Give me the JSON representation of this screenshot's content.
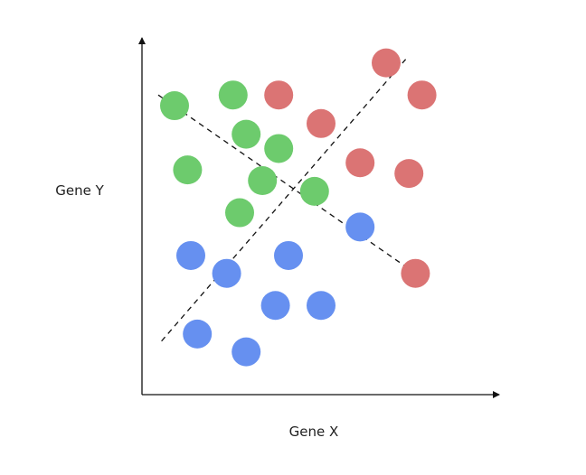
{
  "chart_data": {
    "type": "scatter",
    "xlabel": "Gene X",
    "ylabel": "Gene Y",
    "xlim": [
      0,
      100
    ],
    "ylim": [
      0,
      100
    ],
    "grid": false,
    "legend": "none",
    "colors": {
      "red": "#DB7474",
      "green": "#6DCB6D",
      "blue": "#6690F0",
      "axis": "#111111",
      "line": "#111111"
    },
    "series": [
      {
        "color": "red",
        "points": [
          [
            75,
            93
          ],
          [
            86,
            84
          ],
          [
            42,
            84
          ],
          [
            55,
            76
          ],
          [
            67,
            65
          ],
          [
            82,
            62
          ],
          [
            84,
            34
          ]
        ]
      },
      {
        "color": "green",
        "points": [
          [
            10,
            81
          ],
          [
            28,
            84
          ],
          [
            32,
            73
          ],
          [
            42,
            69
          ],
          [
            14,
            63
          ],
          [
            37,
            60
          ],
          [
            53,
            57
          ],
          [
            30,
            51
          ]
        ]
      },
      {
        "color": "blue",
        "points": [
          [
            67,
            47
          ],
          [
            15,
            39
          ],
          [
            26,
            34
          ],
          [
            45,
            39
          ],
          [
            41,
            25
          ],
          [
            55,
            25
          ],
          [
            17,
            17
          ],
          [
            32,
            12
          ]
        ]
      }
    ],
    "lines": [
      {
        "from": [
          6,
          15
        ],
        "to": [
          81,
          94
        ],
        "style": "dashed"
      },
      {
        "from": [
          5,
          84
        ],
        "to": [
          84,
          34
        ],
        "style": "dashed"
      }
    ]
  }
}
